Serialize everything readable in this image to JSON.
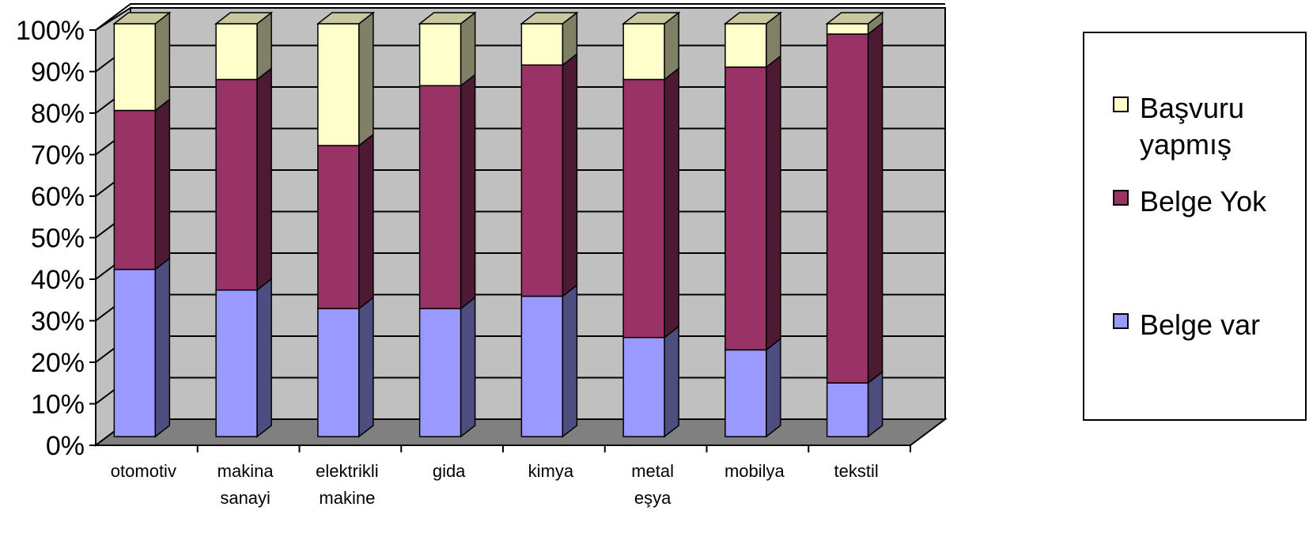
{
  "chart_data": {
    "type": "bar",
    "stacked": "percent",
    "three_d": true,
    "categories": [
      "otomotiv",
      "makina sanayi",
      "elektrikli makine",
      "gida",
      "kimya",
      "metal eşya",
      "mobilya",
      "tekstil"
    ],
    "category_lines": [
      [
        "otomotiv"
      ],
      [
        "makina",
        "sanayi"
      ],
      [
        "elektrikli",
        "makine"
      ],
      [
        "gida"
      ],
      [
        "kimya"
      ],
      [
        "metal",
        "eşya"
      ],
      [
        "mobilya"
      ],
      [
        "tekstil"
      ]
    ],
    "series": [
      {
        "name": "Belge var",
        "color": "#9999ff",
        "side_color": "#4d4d80",
        "values": [
          40.5,
          35.5,
          31,
          31,
          34,
          24,
          21,
          13
        ]
      },
      {
        "name": "Belge Yok",
        "color": "#993366",
        "side_color": "#4d1a33",
        "values": [
          38.5,
          51,
          39.5,
          54,
          56,
          62.5,
          68.5,
          84.5
        ]
      },
      {
        "name": "Başvuru yapmış",
        "color": "#ffffcc",
        "side_color": "#808066",
        "values": [
          21,
          13.5,
          29.5,
          15,
          10,
          13.5,
          10.5,
          2.5
        ]
      }
    ],
    "y_ticks": [
      "0%",
      "10%",
      "20%",
      "30%",
      "40%",
      "50%",
      "60%",
      "70%",
      "80%",
      "90%",
      "100%"
    ],
    "ylim": [
      0,
      100
    ],
    "grid": true,
    "legend_position": "right",
    "legend": [
      {
        "label": "Başvuru yapmış",
        "color": "#ffffcc"
      },
      {
        "label": "Belge Yok",
        "color": "#993366"
      },
      {
        "label": "Belge var",
        "color": "#9999ff"
      }
    ]
  }
}
